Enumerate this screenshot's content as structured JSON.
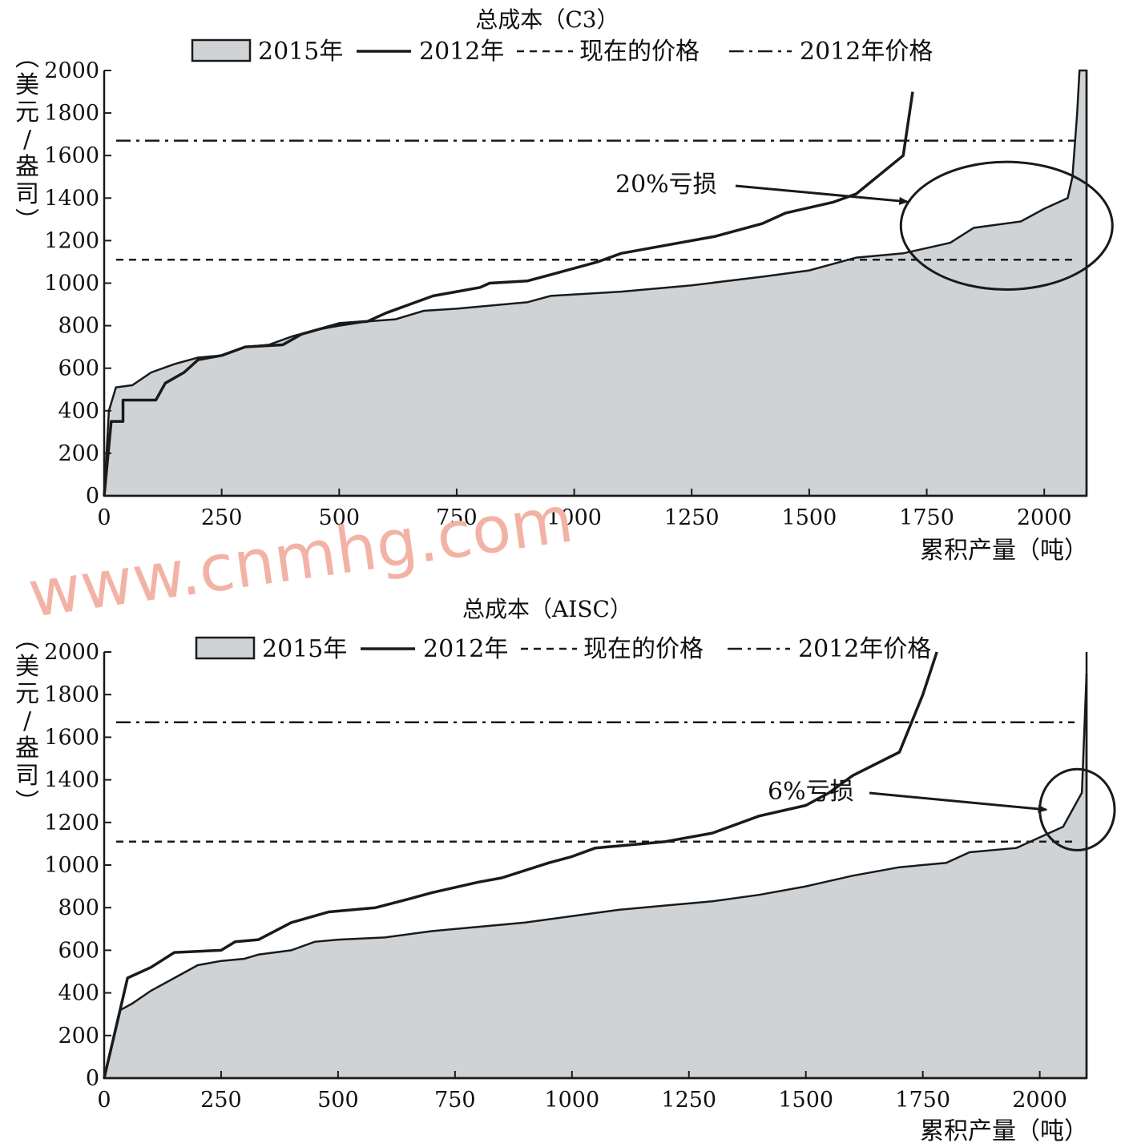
{
  "watermark": "www.cnmhg.com",
  "legend_labels": [
    "2015年",
    "2012年",
    "现在的价格",
    "2012年价格"
  ],
  "colors": {
    "area_fill": "#d0d3d6",
    "line": "#1a1a1a",
    "watermark": "#f2b3a6"
  },
  "chart_data": [
    {
      "type": "area",
      "title": "总成本（C3）",
      "xlabel": "累积产量（吨）",
      "ylabel": "（美元/盎司）",
      "xlim": [
        0,
        2090
      ],
      "ylim": [
        0,
        2000
      ],
      "x_ticks": [
        0,
        250,
        500,
        750,
        1000,
        1250,
        1500,
        1750,
        2000
      ],
      "y_ticks": [
        0,
        200,
        400,
        600,
        800,
        1000,
        1200,
        1400,
        1600,
        1800,
        2000
      ],
      "series": [
        {
          "name": "2015年",
          "style": "area",
          "points": [
            [
              0,
              0
            ],
            [
              10,
              400
            ],
            [
              25,
              510
            ],
            [
              60,
              520
            ],
            [
              100,
              580
            ],
            [
              150,
              620
            ],
            [
              200,
              650
            ],
            [
              250,
              660
            ],
            [
              300,
              700
            ],
            [
              350,
              710
            ],
            [
              400,
              750
            ],
            [
              450,
              780
            ],
            [
              500,
              800
            ],
            [
              560,
              820
            ],
            [
              620,
              830
            ],
            [
              680,
              870
            ],
            [
              750,
              880
            ],
            [
              850,
              900
            ],
            [
              900,
              910
            ],
            [
              950,
              940
            ],
            [
              1100,
              960
            ],
            [
              1250,
              990
            ],
            [
              1400,
              1030
            ],
            [
              1500,
              1060
            ],
            [
              1600,
              1120
            ],
            [
              1700,
              1140
            ],
            [
              1800,
              1190
            ],
            [
              1850,
              1260
            ],
            [
              1950,
              1290
            ],
            [
              2000,
              1350
            ],
            [
              2050,
              1400
            ],
            [
              2060,
              1500
            ],
            [
              2070,
              1800
            ],
            [
              2075,
              2000
            ],
            [
              2090,
              2000
            ]
          ]
        },
        {
          "name": "2012年",
          "style": "line",
          "points": [
            [
              0,
              0
            ],
            [
              15,
              350
            ],
            [
              40,
              350
            ],
            [
              40,
              450
            ],
            [
              110,
              450
            ],
            [
              130,
              530
            ],
            [
              170,
              580
            ],
            [
              200,
              640
            ],
            [
              250,
              660
            ],
            [
              300,
              700
            ],
            [
              380,
              710
            ],
            [
              420,
              760
            ],
            [
              500,
              810
            ],
            [
              560,
              820
            ],
            [
              600,
              860
            ],
            [
              650,
              900
            ],
            [
              700,
              940
            ],
            [
              750,
              960
            ],
            [
              800,
              980
            ],
            [
              820,
              1000
            ],
            [
              900,
              1010
            ],
            [
              950,
              1040
            ],
            [
              1050,
              1100
            ],
            [
              1100,
              1140
            ],
            [
              1200,
              1180
            ],
            [
              1300,
              1220
            ],
            [
              1400,
              1280
            ],
            [
              1450,
              1330
            ],
            [
              1550,
              1380
            ],
            [
              1600,
              1420
            ],
            [
              1700,
              1600
            ],
            [
              1720,
              1900
            ]
          ]
        },
        {
          "name": "现在的价格",
          "style": "dashed",
          "value": 1110
        },
        {
          "name": "2012年价格",
          "style": "dashdot",
          "value": 1670
        }
      ],
      "annotations": [
        {
          "text": "20%亏损",
          "target_x": 1900,
          "target_y": 1290,
          "ellipse": {
            "cx": 1920,
            "cy": 1270,
            "rx": 225,
            "ry": 300
          }
        }
      ]
    },
    {
      "type": "area",
      "title": "总成本（AISC）",
      "xlabel": "累积产量（吨）",
      "ylabel": "（美元/盎司）",
      "xlim": [
        0,
        2100
      ],
      "ylim": [
        0,
        2000
      ],
      "x_ticks": [
        0,
        250,
        500,
        750,
        1000,
        1250,
        1500,
        1750,
        2000
      ],
      "y_ticks": [
        0,
        200,
        400,
        600,
        800,
        1000,
        1200,
        1400,
        1600,
        1800,
        2000
      ],
      "series": [
        {
          "name": "2015年",
          "style": "area",
          "points": [
            [
              0,
              0
            ],
            [
              35,
              320
            ],
            [
              60,
              350
            ],
            [
              100,
              410
            ],
            [
              150,
              470
            ],
            [
              200,
              530
            ],
            [
              250,
              550
            ],
            [
              300,
              560
            ],
            [
              330,
              580
            ],
            [
              400,
              600
            ],
            [
              450,
              640
            ],
            [
              500,
              650
            ],
            [
              600,
              660
            ],
            [
              700,
              690
            ],
            [
              800,
              710
            ],
            [
              900,
              730
            ],
            [
              1000,
              760
            ],
            [
              1100,
              790
            ],
            [
              1200,
              810
            ],
            [
              1300,
              830
            ],
            [
              1400,
              860
            ],
            [
              1500,
              900
            ],
            [
              1600,
              950
            ],
            [
              1700,
              990
            ],
            [
              1800,
              1010
            ],
            [
              1850,
              1060
            ],
            [
              1950,
              1080
            ],
            [
              2000,
              1130
            ],
            [
              2050,
              1180
            ],
            [
              2090,
              1340
            ],
            [
              2100,
              1900
            ],
            [
              2100,
              0
            ]
          ]
        },
        {
          "name": "2012年",
          "style": "line",
          "points": [
            [
              0,
              0
            ],
            [
              50,
              470
            ],
            [
              100,
              520
            ],
            [
              150,
              590
            ],
            [
              250,
              600
            ],
            [
              280,
              640
            ],
            [
              330,
              650
            ],
            [
              400,
              730
            ],
            [
              480,
              780
            ],
            [
              580,
              800
            ],
            [
              650,
              840
            ],
            [
              700,
              870
            ],
            [
              800,
              920
            ],
            [
              850,
              940
            ],
            [
              950,
              1010
            ],
            [
              1000,
              1040
            ],
            [
              1050,
              1080
            ],
            [
              1100,
              1090
            ],
            [
              1200,
              1110
            ],
            [
              1300,
              1150
            ],
            [
              1400,
              1230
            ],
            [
              1500,
              1280
            ],
            [
              1550,
              1340
            ],
            [
              1600,
              1420
            ],
            [
              1700,
              1530
            ],
            [
              1750,
              1800
            ],
            [
              1780,
              2000
            ]
          ]
        },
        {
          "name": "现在的价格",
          "style": "dashed",
          "value": 1110
        },
        {
          "name": "2012年价格",
          "style": "dashdot",
          "value": 1670
        }
      ],
      "annotations": [
        {
          "text": "6%亏损",
          "target_x": 2000,
          "target_y": 1230,
          "ellipse": {
            "cx": 2080,
            "cy": 1260,
            "rx": 80,
            "ry": 190
          }
        }
      ]
    }
  ]
}
